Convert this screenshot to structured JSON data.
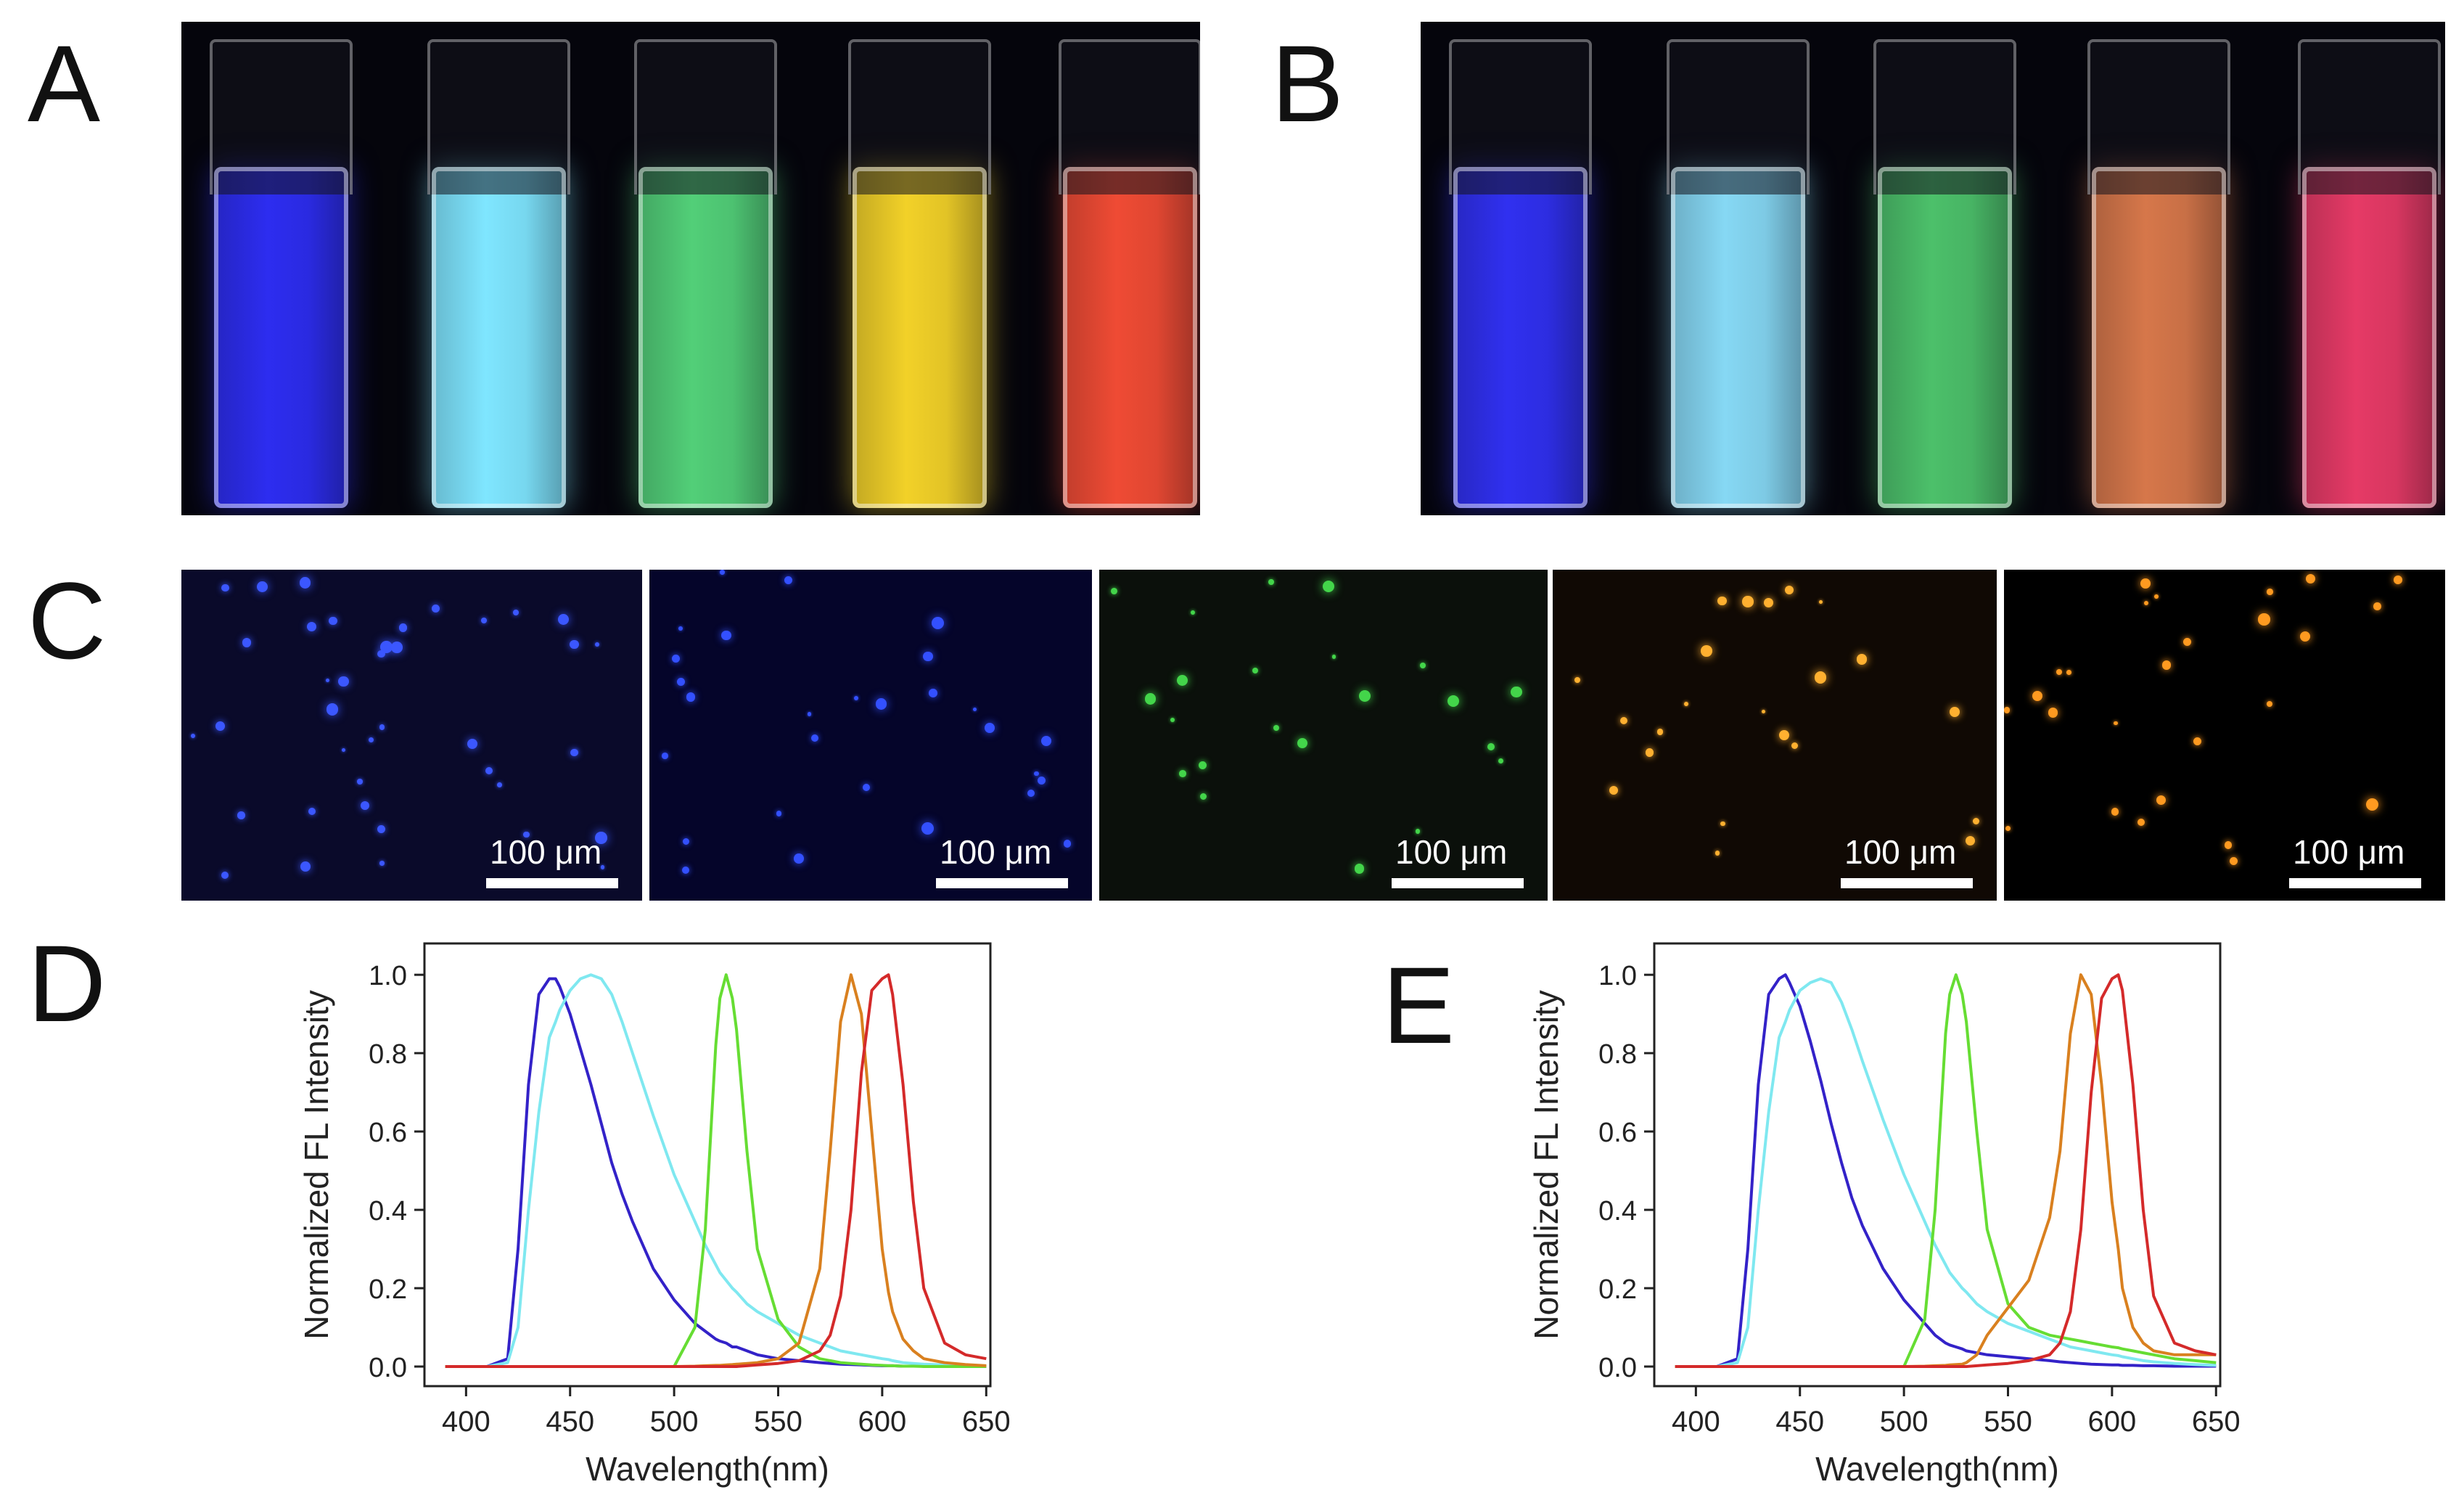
{
  "panels": {
    "A": {
      "letter": "A"
    },
    "B": {
      "letter": "B"
    },
    "C": {
      "letter": "C"
    },
    "D": {
      "letter": "D"
    },
    "E": {
      "letter": "E"
    }
  },
  "cuvette_colors_A": [
    "#2d2df0",
    "#7fe6ff",
    "#52cf78",
    "#f2d128",
    "#ef4b34"
  ],
  "cuvette_colors_B": [
    "#3030f0",
    "#86d8f4",
    "#4cc06a",
    "#d6774a",
    "#e63a66"
  ],
  "micro_dot_colors": [
    "#3b57ff",
    "#3350ff",
    "#43d54a",
    "#ffb030",
    "#ff9a20"
  ],
  "scale_labels": [
    "100 μm",
    "100 μm",
    "100 μm",
    "100 μm",
    "100 μm"
  ],
  "series_colors": [
    "#3322c8",
    "#7fe8f0",
    "#66dd33",
    "#d9801f",
    "#d42a2a"
  ],
  "chart_data": [
    {
      "panel": "D",
      "type": "line",
      "xlabel": "Wavelength(nm)",
      "ylabel": "Normalized FL Intensity",
      "xlim": [
        380,
        652
      ],
      "ylim": [
        -0.05,
        1.08
      ],
      "xticks": [
        400,
        450,
        500,
        550,
        600,
        650
      ],
      "yticks": [
        0.0,
        0.2,
        0.4,
        0.6,
        0.8,
        1.0
      ],
      "x": [
        390,
        400,
        410,
        420,
        425,
        430,
        435,
        440,
        443,
        445,
        450,
        455,
        460,
        465,
        470,
        475,
        480,
        490,
        500,
        510,
        515,
        520,
        522,
        525,
        528,
        530,
        535,
        540,
        550,
        560,
        570,
        575,
        580,
        585,
        590,
        595,
        600,
        603,
        605,
        610,
        615,
        620,
        630,
        640,
        650
      ],
      "series": [
        {
          "color": "#3322c8",
          "values": [
            0,
            0,
            0,
            0.02,
            0.3,
            0.72,
            0.95,
            0.99,
            0.99,
            0.97,
            0.9,
            0.81,
            0.72,
            0.62,
            0.52,
            0.44,
            0.37,
            0.25,
            0.17,
            0.11,
            0.09,
            0.07,
            0.065,
            0.06,
            0.05,
            0.05,
            0.04,
            0.03,
            0.02,
            0.015,
            0.01,
            0.008,
            0.006,
            0.005,
            0.004,
            0.003,
            0.002,
            0.002,
            0.002,
            0.001,
            0.001,
            0.001,
            0,
            0,
            0
          ]
        },
        {
          "color": "#7fe8f0",
          "values": [
            0,
            0,
            0,
            0.01,
            0.1,
            0.4,
            0.65,
            0.84,
            0.88,
            0.91,
            0.96,
            0.99,
            1.0,
            0.99,
            0.95,
            0.88,
            0.8,
            0.64,
            0.49,
            0.37,
            0.31,
            0.26,
            0.24,
            0.22,
            0.2,
            0.19,
            0.16,
            0.14,
            0.11,
            0.08,
            0.06,
            0.05,
            0.04,
            0.035,
            0.03,
            0.025,
            0.02,
            0.018,
            0.015,
            0.01,
            0.008,
            0.006,
            0.004,
            0.002,
            0.001
          ]
        },
        {
          "color": "#66dd33",
          "values": [
            0,
            0,
            0,
            0,
            0,
            0,
            0,
            0,
            0,
            0,
            0,
            0,
            0,
            0,
            0,
            0,
            0,
            0,
            0,
            0.1,
            0.35,
            0.82,
            0.94,
            1.0,
            0.94,
            0.86,
            0.55,
            0.3,
            0.12,
            0.05,
            0.02,
            0.015,
            0.01,
            0.008,
            0.006,
            0.004,
            0.003,
            0.002,
            0.002,
            0.001,
            0.001,
            0,
            0,
            0,
            0
          ]
        },
        {
          "color": "#d9801f",
          "values": [
            0,
            0,
            0,
            0,
            0,
            0,
            0,
            0,
            0,
            0,
            0,
            0,
            0,
            0,
            0,
            0,
            0,
            0,
            0,
            0.001,
            0.002,
            0.003,
            0.003,
            0.004,
            0.005,
            0.006,
            0.008,
            0.01,
            0.02,
            0.06,
            0.25,
            0.55,
            0.88,
            1.0,
            0.9,
            0.6,
            0.3,
            0.19,
            0.14,
            0.07,
            0.04,
            0.02,
            0.01,
            0.005,
            0.002
          ]
        },
        {
          "color": "#d42a2a",
          "values": [
            0,
            0,
            0,
            0,
            0,
            0,
            0,
            0,
            0,
            0,
            0,
            0,
            0,
            0,
            0,
            0,
            0,
            0,
            0,
            0,
            0,
            0,
            0,
            0,
            0,
            0,
            0.002,
            0.004,
            0.008,
            0.015,
            0.04,
            0.08,
            0.18,
            0.4,
            0.75,
            0.96,
            0.99,
            1.0,
            0.95,
            0.72,
            0.42,
            0.2,
            0.06,
            0.03,
            0.02
          ]
        }
      ]
    },
    {
      "panel": "E",
      "type": "line",
      "xlabel": "Wavelength(nm)",
      "ylabel": "Normalized FL Intensity",
      "xlim": [
        380,
        652
      ],
      "ylim": [
        -0.05,
        1.08
      ],
      "xticks": [
        400,
        450,
        500,
        550,
        600,
        650
      ],
      "yticks": [
        0.0,
        0.2,
        0.4,
        0.6,
        0.8,
        1.0
      ],
      "x": [
        390,
        400,
        410,
        420,
        425,
        430,
        435,
        440,
        443,
        445,
        450,
        455,
        460,
        465,
        470,
        475,
        480,
        490,
        500,
        510,
        515,
        520,
        522,
        525,
        528,
        530,
        535,
        540,
        550,
        560,
        570,
        575,
        580,
        585,
        590,
        595,
        600,
        603,
        605,
        610,
        615,
        620,
        630,
        640,
        650
      ],
      "series": [
        {
          "color": "#3322c8",
          "values": [
            0,
            0,
            0,
            0.02,
            0.3,
            0.72,
            0.95,
            0.99,
            1.0,
            0.98,
            0.92,
            0.83,
            0.73,
            0.62,
            0.52,
            0.43,
            0.36,
            0.25,
            0.17,
            0.11,
            0.08,
            0.06,
            0.055,
            0.05,
            0.045,
            0.04,
            0.035,
            0.03,
            0.025,
            0.02,
            0.015,
            0.012,
            0.01,
            0.008,
            0.006,
            0.005,
            0.004,
            0.004,
            0.003,
            0.003,
            0.002,
            0.002,
            0.001,
            0.001,
            0.001
          ]
        },
        {
          "color": "#7fe8f0",
          "values": [
            0,
            0,
            0,
            0.01,
            0.1,
            0.4,
            0.65,
            0.84,
            0.88,
            0.91,
            0.96,
            0.98,
            0.99,
            0.98,
            0.93,
            0.86,
            0.78,
            0.63,
            0.49,
            0.37,
            0.31,
            0.26,
            0.24,
            0.22,
            0.2,
            0.19,
            0.16,
            0.14,
            0.11,
            0.09,
            0.07,
            0.06,
            0.05,
            0.045,
            0.04,
            0.035,
            0.03,
            0.028,
            0.025,
            0.02,
            0.015,
            0.012,
            0.008,
            0.005,
            0.003
          ]
        },
        {
          "color": "#66dd33",
          "values": [
            0,
            0,
            0,
            0,
            0,
            0,
            0,
            0,
            0,
            0,
            0,
            0,
            0,
            0,
            0,
            0,
            0,
            0,
            0,
            0.12,
            0.4,
            0.85,
            0.95,
            1.0,
            0.95,
            0.88,
            0.6,
            0.35,
            0.16,
            0.1,
            0.08,
            0.075,
            0.07,
            0.065,
            0.06,
            0.055,
            0.05,
            0.048,
            0.045,
            0.04,
            0.035,
            0.03,
            0.02,
            0.015,
            0.01
          ]
        },
        {
          "color": "#d9801f",
          "values": [
            0,
            0,
            0,
            0,
            0,
            0,
            0,
            0,
            0,
            0,
            0,
            0,
            0,
            0,
            0,
            0,
            0,
            0,
            0,
            0.001,
            0.002,
            0.003,
            0.004,
            0.005,
            0.006,
            0.01,
            0.03,
            0.08,
            0.15,
            0.22,
            0.38,
            0.55,
            0.85,
            1.0,
            0.95,
            0.72,
            0.42,
            0.3,
            0.2,
            0.1,
            0.06,
            0.04,
            0.03,
            0.03,
            0.03
          ]
        },
        {
          "color": "#d42a2a",
          "values": [
            0,
            0,
            0,
            0,
            0,
            0,
            0,
            0,
            0,
            0,
            0,
            0,
            0,
            0,
            0,
            0,
            0,
            0,
            0,
            0,
            0,
            0,
            0,
            0,
            0,
            0,
            0.002,
            0.004,
            0.008,
            0.015,
            0.03,
            0.06,
            0.14,
            0.35,
            0.7,
            0.94,
            0.99,
            1.0,
            0.96,
            0.72,
            0.4,
            0.18,
            0.06,
            0.04,
            0.03
          ]
        }
      ]
    }
  ]
}
